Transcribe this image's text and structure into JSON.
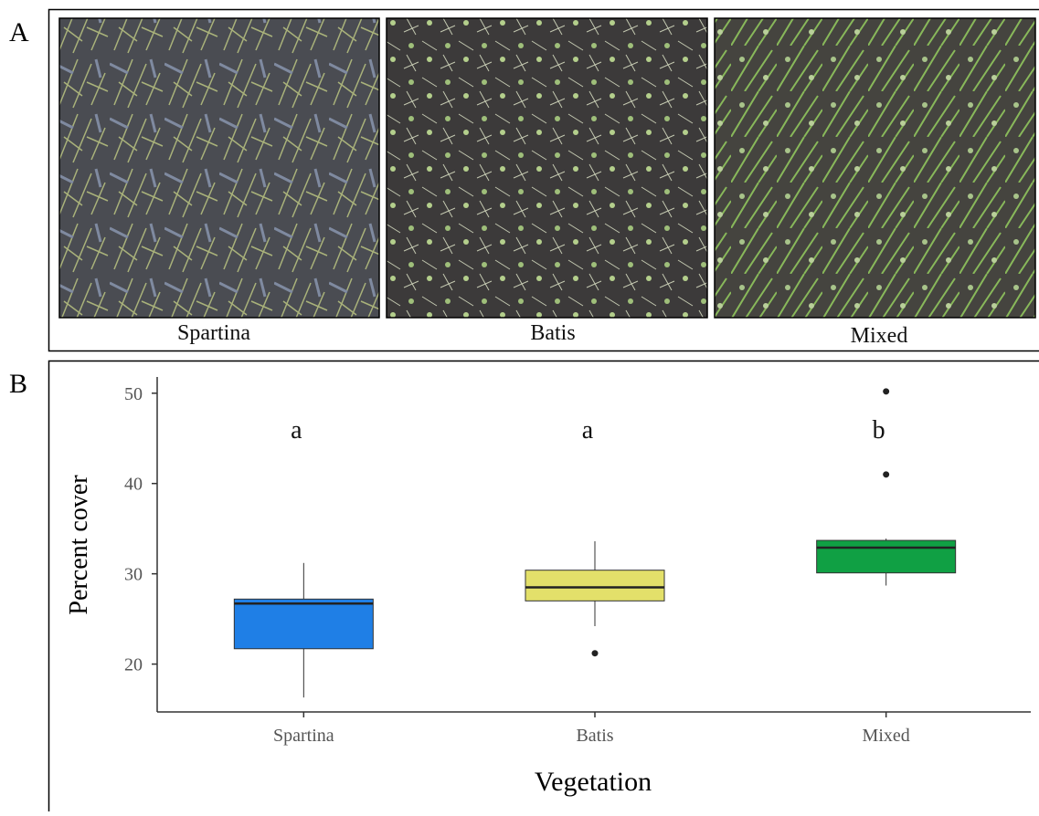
{
  "panel_a": {
    "label": "A",
    "photos": [
      {
        "caption": "Spartina"
      },
      {
        "caption": "Batis"
      },
      {
        "caption": "Mixed"
      }
    ]
  },
  "chart_data": {
    "type": "box",
    "panel_label": "B",
    "x_label": "Vegetation",
    "y_label": "Percent cover",
    "categories": [
      "Spartina",
      "Batis",
      "Mixed"
    ],
    "colors": [
      "#1f7fe6",
      "#e3e06a",
      "#10a044"
    ],
    "boxes": [
      {
        "whisker_low": 16.3,
        "q1": 21.7,
        "median": 26.7,
        "q3": 27.2,
        "whisker_high": 31.2,
        "outliers": []
      },
      {
        "whisker_low": 24.2,
        "q1": 27.0,
        "median": 28.5,
        "q3": 30.4,
        "whisker_high": 33.6,
        "outliers": [
          21.2
        ]
      },
      {
        "whisker_low": 28.7,
        "q1": 30.1,
        "median": 32.9,
        "q3": 33.7,
        "whisker_high": 33.9,
        "outliers": [
          50.2,
          41.0
        ]
      }
    ],
    "annotations": [
      "a",
      "a",
      "b"
    ],
    "ylim": [
      14.7,
      51.8
    ],
    "yticks": [
      20,
      30,
      40,
      50
    ]
  }
}
